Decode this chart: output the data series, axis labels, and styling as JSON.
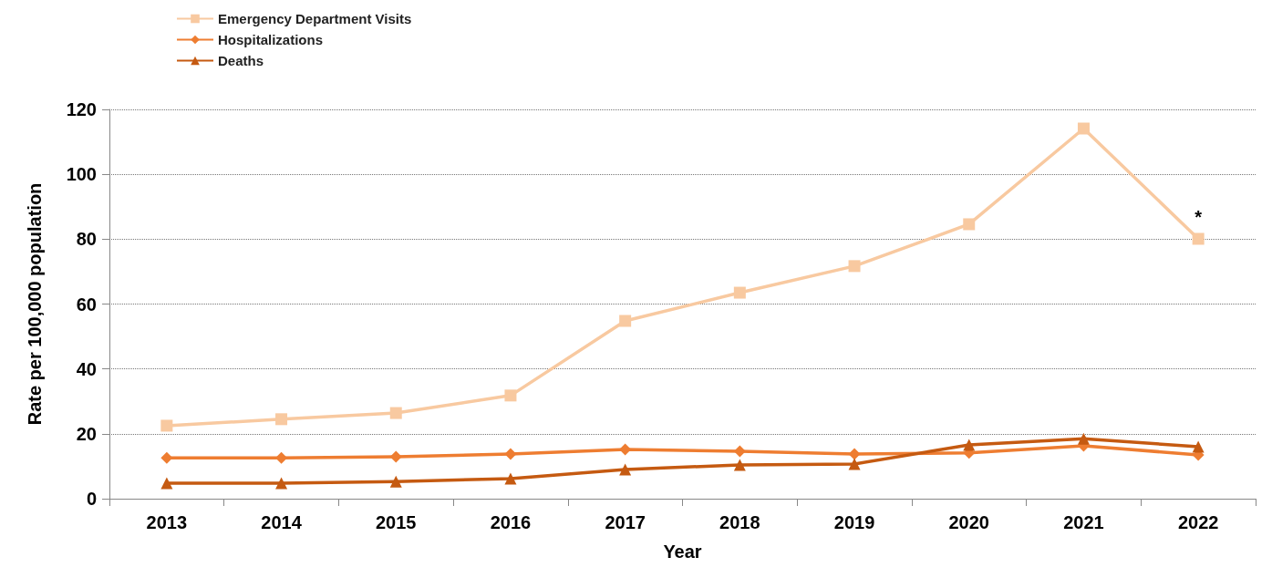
{
  "chart_data": {
    "type": "line",
    "xlabel": "Year",
    "ylabel": "Rate per 100,000 population",
    "categories": [
      "2013",
      "2014",
      "2015",
      "2016",
      "2017",
      "2018",
      "2019",
      "2020",
      "2021",
      "2022"
    ],
    "series": [
      {
        "name": "Emergency Department Visits",
        "color": "#f8c9a0",
        "marker": "square",
        "values": [
          22.5,
          24.5,
          26.4,
          31.8,
          54.8,
          63.5,
          71.7,
          84.6,
          114.1,
          80.1
        ]
      },
      {
        "name": "Hospitalizations",
        "color": "#ee7d31",
        "marker": "diamond",
        "values": [
          12.6,
          12.6,
          12.9,
          13.8,
          15.2,
          14.6,
          13.8,
          14.1,
          16.3,
          13.5
        ]
      },
      {
        "name": "Deaths",
        "color": "#c55a11",
        "marker": "triangle",
        "values": [
          4.8,
          4.8,
          5.3,
          6.2,
          9.0,
          10.4,
          10.7,
          16.6,
          18.5,
          16.0
        ]
      }
    ],
    "ylim": [
      0,
      120
    ],
    "yticks": [
      0,
      20,
      40,
      60,
      80,
      100,
      120
    ],
    "grid": "y",
    "legend": "top left",
    "line_style": "solid",
    "annotations": [
      "*"
    ]
  }
}
